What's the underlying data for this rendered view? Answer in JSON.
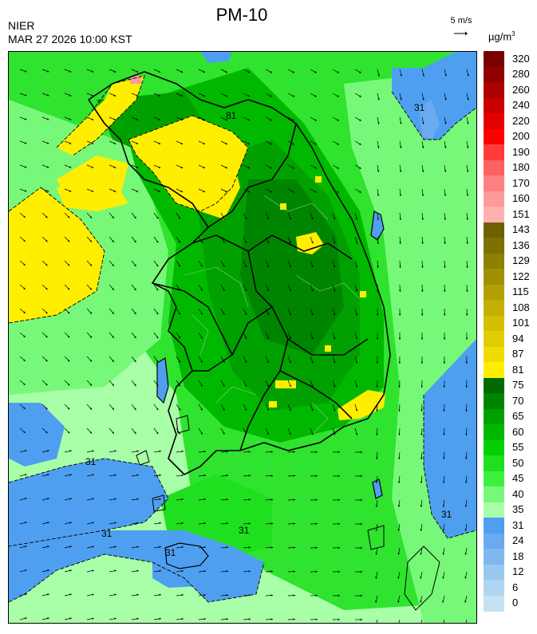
{
  "header": {
    "title": "PM-10",
    "organization": "NIER",
    "timestamp": "MAR 27 2026 10:00 KST",
    "wind_reference": "5 m/s",
    "unit_base": "µg/m",
    "unit_exp": "3"
  },
  "legend": {
    "levels": [
      {
        "label": "320",
        "color": "#7a0000"
      },
      {
        "label": "280",
        "color": "#930000"
      },
      {
        "label": "260",
        "color": "#ad0000"
      },
      {
        "label": "240",
        "color": "#c80000"
      },
      {
        "label": "220",
        "color": "#e20000"
      },
      {
        "label": "200",
        "color": "#fc0000"
      },
      {
        "label": "190",
        "color": "#ff3c3c"
      },
      {
        "label": "180",
        "color": "#ff6060"
      },
      {
        "label": "170",
        "color": "#ff8080"
      },
      {
        "label": "160",
        "color": "#ff9a9a"
      },
      {
        "label": "151",
        "color": "#ffb0b0"
      },
      {
        "label": "143",
        "color": "#6b6100"
      },
      {
        "label": "136",
        "color": "#7c7000"
      },
      {
        "label": "129",
        "color": "#8e8000"
      },
      {
        "label": "122",
        "color": "#a09000"
      },
      {
        "label": "115",
        "color": "#b2a000"
      },
      {
        "label": "108",
        "color": "#c4b000"
      },
      {
        "label": "101",
        "color": "#d2bf00"
      },
      {
        "label": "94",
        "color": "#e0cd00"
      },
      {
        "label": "87",
        "color": "#f0dc00"
      },
      {
        "label": "81",
        "color": "#ffee00"
      },
      {
        "label": "75",
        "color": "#006a00"
      },
      {
        "label": "70",
        "color": "#008500"
      },
      {
        "label": "65",
        "color": "#00a000"
      },
      {
        "label": "60",
        "color": "#00b800"
      },
      {
        "label": "55",
        "color": "#00cf00"
      },
      {
        "label": "50",
        "color": "#1ee01e"
      },
      {
        "label": "45",
        "color": "#3ef03e"
      },
      {
        "label": "40",
        "color": "#78f878"
      },
      {
        "label": "35",
        "color": "#a8ffa8"
      },
      {
        "label": "31",
        "color": "#4f9ff0"
      },
      {
        "label": "24",
        "color": "#6aaaf0"
      },
      {
        "label": "18",
        "color": "#80b8ee"
      },
      {
        "label": "12",
        "color": "#98c8ee"
      },
      {
        "label": "6",
        "color": "#aed6f0"
      },
      {
        "label": "0",
        "color": "#c4e2f2"
      }
    ]
  },
  "map": {
    "contour_labels": [
      {
        "text": "31"
      },
      {
        "text": "31"
      },
      {
        "text": "31"
      },
      {
        "text": "31"
      },
      {
        "text": "31"
      },
      {
        "text": "81"
      },
      {
        "text": "31"
      }
    ]
  }
}
